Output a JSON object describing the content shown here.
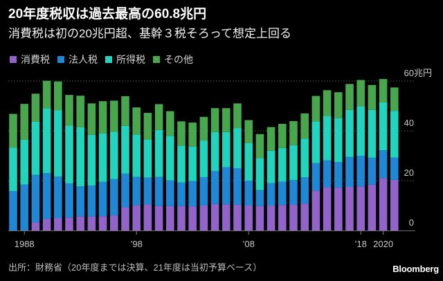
{
  "chart_data": {
    "type": "bar",
    "stacked": true,
    "title": "20年度税収は過去最高の60.8兆円",
    "subtitle": "消費税は初の20兆円超、基幹３税そろって想定上回る",
    "categories": [
      1987,
      1988,
      1989,
      1990,
      1991,
      1992,
      1993,
      1994,
      1995,
      1996,
      1997,
      1998,
      1999,
      2000,
      2001,
      2002,
      2003,
      2004,
      2005,
      2006,
      2007,
      2008,
      2009,
      2010,
      2011,
      2012,
      2013,
      2014,
      2015,
      2016,
      2017,
      2018,
      2019,
      2020,
      2021
    ],
    "series": [
      {
        "name": "消費税",
        "color": "#9263c8",
        "values": [
          0,
          0,
          3.3,
          4.6,
          5.0,
          5.2,
          5.6,
          5.6,
          5.8,
          6.1,
          9.3,
          10.1,
          10.4,
          9.8,
          9.8,
          9.8,
          9.7,
          10.0,
          10.6,
          10.5,
          10.3,
          10.0,
          9.8,
          10.0,
          10.2,
          10.4,
          10.8,
          16.0,
          17.4,
          17.2,
          17.5,
          17.7,
          18.4,
          21.0,
          20.3
        ]
      },
      {
        "name": "法人税",
        "color": "#1e88d6",
        "values": [
          15.8,
          18.4,
          19.0,
          18.4,
          16.6,
          13.7,
          12.1,
          12.4,
          13.7,
          14.5,
          13.5,
          11.4,
          10.8,
          11.7,
          10.3,
          9.5,
          10.1,
          11.4,
          13.3,
          14.9,
          14.7,
          10.0,
          6.4,
          9.0,
          9.4,
          9.8,
          10.5,
          11.0,
          10.8,
          10.3,
          12.0,
          12.3,
          10.8,
          11.2,
          9.0
        ]
      },
      {
        "name": "所得税",
        "color": "#20d4be",
        "values": [
          17.4,
          18.0,
          21.4,
          26.0,
          26.7,
          23.2,
          23.7,
          20.4,
          19.5,
          19.0,
          19.2,
          17.0,
          15.4,
          18.8,
          17.8,
          14.8,
          13.9,
          14.7,
          15.6,
          14.1,
          16.1,
          15.0,
          12.9,
          13.0,
          13.5,
          14.0,
          15.5,
          16.8,
          17.8,
          17.6,
          18.9,
          19.9,
          19.2,
          19.2,
          18.7
        ]
      },
      {
        "name": "その他",
        "color": "#48a64c",
        "values": [
          13.6,
          14.4,
          11.2,
          11.1,
          11.5,
          12.3,
          12.7,
          12.6,
          12.9,
          12.5,
          11.9,
          10.9,
          10.6,
          10.4,
          10.0,
          9.7,
          9.6,
          9.5,
          9.6,
          9.6,
          9.9,
          9.3,
          9.6,
          9.5,
          9.7,
          9.7,
          10.2,
          10.2,
          10.3,
          10.4,
          10.4,
          10.5,
          10.0,
          9.4,
          9.4
        ]
      }
    ],
    "y_ticks": [
      0,
      20,
      40,
      60
    ],
    "y_unit": "兆円",
    "ylim": [
      0,
      60
    ],
    "x_ticks": [
      {
        "category": 1988,
        "label": "1988"
      },
      {
        "category": 1998,
        "label": "’98"
      },
      {
        "category": 2008,
        "label": "’08"
      },
      {
        "category": 2018,
        "label": "’18"
      },
      {
        "category": 2020,
        "label": "2020"
      }
    ],
    "grid": true,
    "source": "出所：財務省（20年度までは決算、21年度は当初予算ベース）"
  },
  "brand": "Bloomberg",
  "colors": {
    "background": "#000000"
  }
}
